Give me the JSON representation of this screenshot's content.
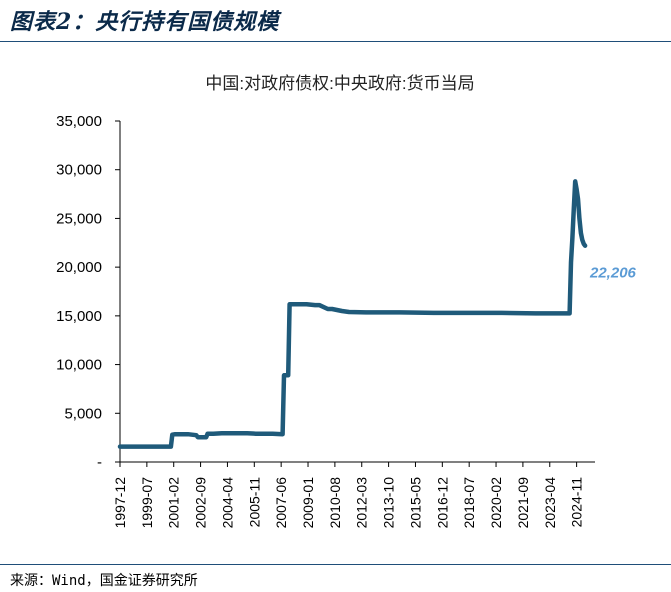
{
  "header": {
    "title": "图表2：央行持有国债规模"
  },
  "footer": {
    "source": "来源：Wind，国金证券研究所"
  },
  "chart_data": {
    "type": "line",
    "title": "中国:对政府债权:中央政府:货币当局",
    "xlabel": "",
    "ylabel": "",
    "ylim": [
      0,
      35000
    ],
    "yticks": [
      0,
      5000,
      10000,
      15000,
      20000,
      25000,
      30000,
      35000
    ],
    "ytick_labels": [
      "-",
      "5,000",
      "10,000",
      "15,000",
      "20,000",
      "25,000",
      "30,000",
      "35,000"
    ],
    "xlim": [
      "1997-12",
      "2025-12"
    ],
    "xtick_labels": [
      "1997-12",
      "1999-07",
      "2001-02",
      "2002-09",
      "2004-04",
      "2005-11",
      "2007-06",
      "2009-01",
      "2010-08",
      "2012-03",
      "2013-10",
      "2015-05",
      "2016-12",
      "2018-07",
      "2020-02",
      "2021-09",
      "2023-04",
      "2024-11"
    ],
    "grid": false,
    "line_color": "#1f5a7a",
    "annotation": {
      "text": "22,206",
      "value": 22206,
      "color": "#5b9bd5"
    },
    "series": [
      {
        "x": [
          "1997-12",
          "2000-12",
          "2001-01",
          "2001-03",
          "2001-12",
          "2002-06",
          "2002-07",
          "2003-01",
          "2003-02",
          "2003-06",
          "2003-12",
          "2004-12",
          "2005-06",
          "2005-12",
          "2006-12",
          "2007-07",
          "2007-08",
          "2007-11",
          "2007-12",
          "2008-12",
          "2009-06",
          "2009-09",
          "2010-03",
          "2010-06",
          "2011-01",
          "2011-06",
          "2012-06",
          "2014-06",
          "2016-06",
          "2018-06",
          "2020-06",
          "2022-06",
          "2024-06",
          "2024-07",
          "2024-08",
          "2024-09",
          "2024-10",
          "2024-11",
          "2024-12",
          "2025-01",
          "2025-02",
          "2025-03",
          "2025-04",
          "2025-05"
        ],
        "values": [
          1580,
          1580,
          2800,
          2850,
          2850,
          2750,
          2550,
          2550,
          2900,
          2900,
          2950,
          2950,
          2950,
          2900,
          2900,
          2850,
          8900,
          8900,
          16200,
          16200,
          16100,
          16100,
          15700,
          15700,
          15500,
          15400,
          15350,
          15350,
          15300,
          15300,
          15300,
          15250,
          15250,
          20500,
          23000,
          26000,
          28800,
          28000,
          27000,
          25000,
          23500,
          22800,
          22400,
          22206
        ]
      }
    ]
  }
}
